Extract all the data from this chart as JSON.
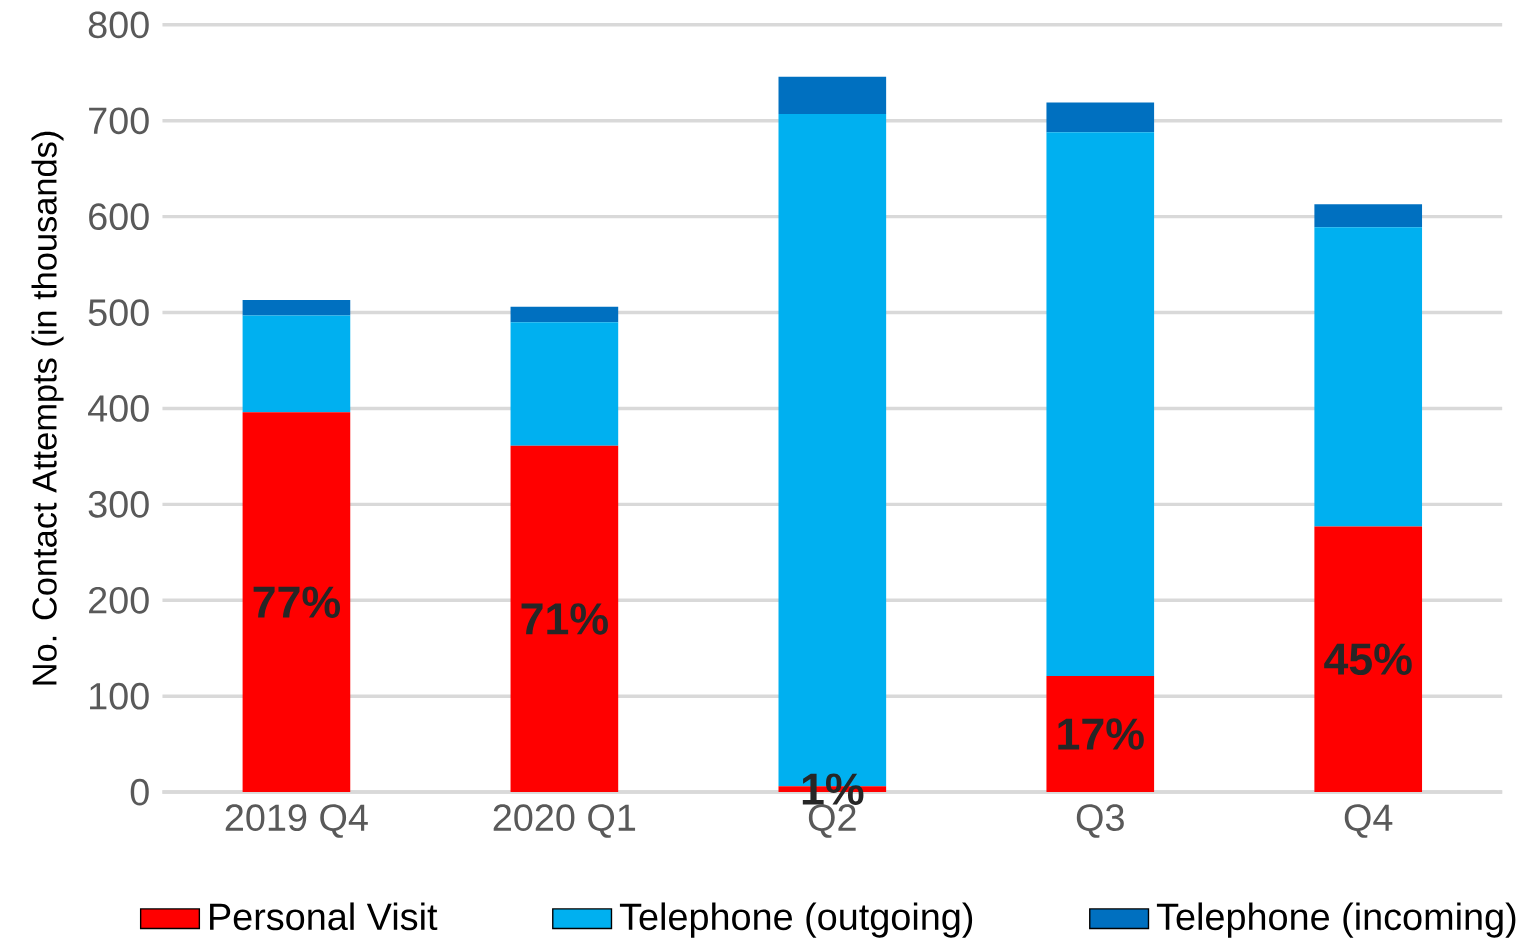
{
  "chart_data": {
    "type": "bar",
    "stacked": true,
    "ylabel": "No. Contact Attempts (in thousands)",
    "categories": [
      "2019 Q4",
      "2020 Q1",
      "Q2",
      "Q3",
      "Q4"
    ],
    "series": [
      {
        "name": "Personal Visit",
        "color": "#ff0000",
        "values": [
          396,
          361,
          6,
          121,
          277
        ]
      },
      {
        "name": "Telephone (outgoing)",
        "color": "#00b0f0",
        "values": [
          101,
          129,
          701,
          567,
          312
        ]
      },
      {
        "name": "Telephone (incoming)",
        "color": "#0070c0",
        "values": [
          16,
          16,
          39,
          31,
          24
        ]
      }
    ],
    "annotations": [
      "77%",
      "71%",
      "1%",
      "17%",
      "45%"
    ],
    "ylim": [
      0,
      800
    ],
    "yticks": [
      0,
      100,
      200,
      300,
      400,
      500,
      600,
      700,
      800
    ],
    "grid": "y",
    "legend": "bottom"
  }
}
